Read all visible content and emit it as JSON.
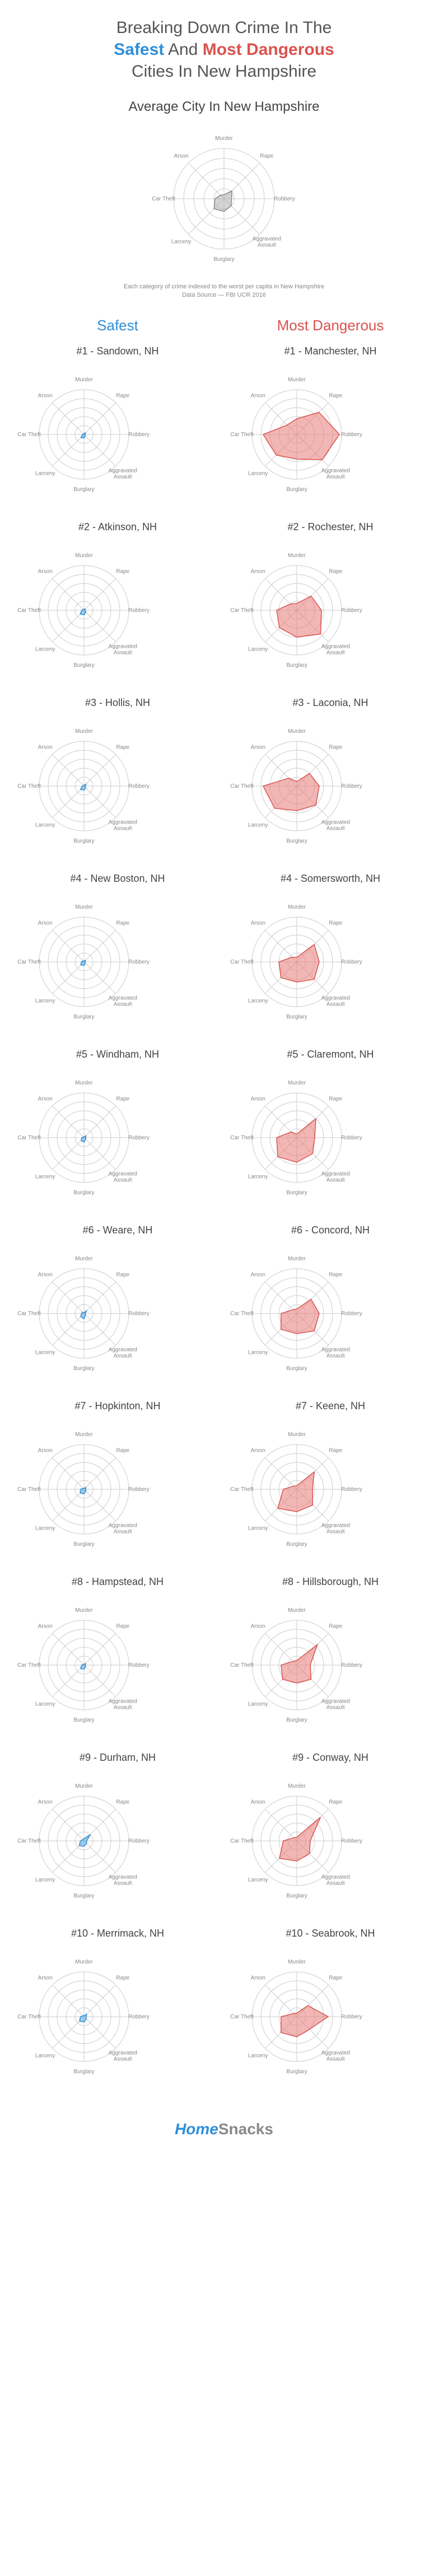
{
  "title": {
    "line1": "Breaking Down Crime In The",
    "safest": "Safest",
    "and": " And ",
    "danger": "Most Dangerous",
    "line3": "Cities In New Hampshire"
  },
  "avg_heading": "Average City In New Hampshire",
  "caption": "Each category of crime indexed to the worst per capita in New Hampshire\nData Source — FBI UCR 2016",
  "col_safest": "Safest",
  "col_danger": "Most Dangerous",
  "axes": [
    "Murder",
    "Rape",
    "Robbery",
    "Aggravated Assault",
    "Burglary",
    "Larceny",
    "Car Theft",
    "Arson"
  ],
  "chart_style": {
    "size": 280,
    "small_size": 260,
    "max_r": 90,
    "small_max_r": 80,
    "rings": 5,
    "ring_color": "#cccccc",
    "safest_fill": "#5fa8dc",
    "safest_fill_opacity": 0.55,
    "safest_stroke": "#2e8fd8",
    "danger_fill": "#e87b78",
    "danger_fill_opacity": 0.55,
    "danger_stroke": "#d9534f",
    "avg_fill": "#b0b0b0",
    "avg_fill_opacity": 0.55,
    "avg_stroke": "#888888",
    "label_color": "#888888",
    "label_fontsize": 10
  },
  "average": {
    "values": [
      0.08,
      0.22,
      0.15,
      0.2,
      0.25,
      0.28,
      0.18,
      0.1
    ]
  },
  "rows": [
    {
      "safe": {
        "title": "#1 - Sandown, NH",
        "values": [
          0.0,
          0.05,
          0.02,
          0.04,
          0.08,
          0.1,
          0.03,
          0.02
        ]
      },
      "dang": {
        "title": "#1 - Manchester, NH",
        "values": [
          0.35,
          0.7,
          0.95,
          0.8,
          0.55,
          0.65,
          0.75,
          0.3
        ]
      }
    },
    {
      "safe": {
        "title": "#2 - Atkinson, NH",
        "values": [
          0.0,
          0.04,
          0.02,
          0.06,
          0.1,
          0.12,
          0.05,
          0.03
        ]
      },
      "dang": {
        "title": "#2 - Rochester, NH",
        "values": [
          0.15,
          0.45,
          0.55,
          0.75,
          0.6,
          0.55,
          0.45,
          0.2
        ]
      }
    },
    {
      "safe": {
        "title": "#3 - Hollis, NH",
        "values": [
          0.0,
          0.06,
          0.03,
          0.05,
          0.09,
          0.11,
          0.04,
          0.02
        ]
      },
      "dang": {
        "title": "#3 - Laconia, NH",
        "values": [
          0.1,
          0.4,
          0.5,
          0.6,
          0.55,
          0.7,
          0.75,
          0.25
        ]
      }
    },
    {
      "safe": {
        "title": "#4 - New Boston, NH",
        "values": [
          0.0,
          0.05,
          0.02,
          0.04,
          0.08,
          0.1,
          0.06,
          0.03
        ]
      },
      "dang": {
        "title": "#4 - Somersworth, NH",
        "values": [
          0.1,
          0.55,
          0.5,
          0.55,
          0.45,
          0.5,
          0.4,
          0.15
        ]
      }
    },
    {
      "safe": {
        "title": "#5 - Windham, NH",
        "values": [
          0.0,
          0.06,
          0.04,
          0.05,
          0.1,
          0.09,
          0.05,
          0.02
        ]
      },
      "dang": {
        "title": "#5 - Claremont, NH",
        "values": [
          0.08,
          0.6,
          0.4,
          0.5,
          0.55,
          0.6,
          0.45,
          0.18
        ]
      }
    },
    {
      "safe": {
        "title": "#6 - Weare, NH",
        "values": [
          0.0,
          0.08,
          0.03,
          0.05,
          0.12,
          0.1,
          0.06,
          0.04
        ]
      },
      "dang": {
        "title": "#6 - Concord, NH",
        "values": [
          0.1,
          0.45,
          0.5,
          0.55,
          0.45,
          0.5,
          0.35,
          0.12
        ]
      }
    },
    {
      "safe": {
        "title": "#7 - Hopkinton, NH",
        "values": [
          0.0,
          0.06,
          0.04,
          0.06,
          0.1,
          0.12,
          0.08,
          0.03
        ]
      },
      "dang": {
        "title": "#7 - Keene, NH",
        "values": [
          0.08,
          0.55,
          0.35,
          0.5,
          0.5,
          0.6,
          0.3,
          0.1
        ]
      }
    },
    {
      "safe": {
        "title": "#8 - Hampstead, NH",
        "values": [
          0.0,
          0.05,
          0.03,
          0.05,
          0.09,
          0.11,
          0.05,
          0.02
        ]
      },
      "dang": {
        "title": "#8 - Hillsborough, NH",
        "values": [
          0.1,
          0.65,
          0.3,
          0.45,
          0.4,
          0.45,
          0.35,
          0.12
        ]
      }
    },
    {
      "safe": {
        "title": "#9 - Durham, NH",
        "values": [
          0.05,
          0.2,
          0.06,
          0.08,
          0.12,
          0.15,
          0.08,
          0.04
        ]
      },
      "dang": {
        "title": "#9 - Conway, NH",
        "values": [
          0.08,
          0.75,
          0.3,
          0.4,
          0.45,
          0.55,
          0.3,
          0.1
        ]
      }
    },
    {
      "safe": {
        "title": "#10 - Merrimack, NH",
        "values": [
          0.0,
          0.08,
          0.05,
          0.07,
          0.12,
          0.14,
          0.08,
          0.03
        ]
      },
      "dang": {
        "title": "#10 - Seabrook, NH",
        "values": [
          0.08,
          0.35,
          0.7,
          0.4,
          0.45,
          0.5,
          0.35,
          0.1
        ]
      }
    }
  ],
  "footer": {
    "h": "Home",
    "s": "Snacks"
  }
}
